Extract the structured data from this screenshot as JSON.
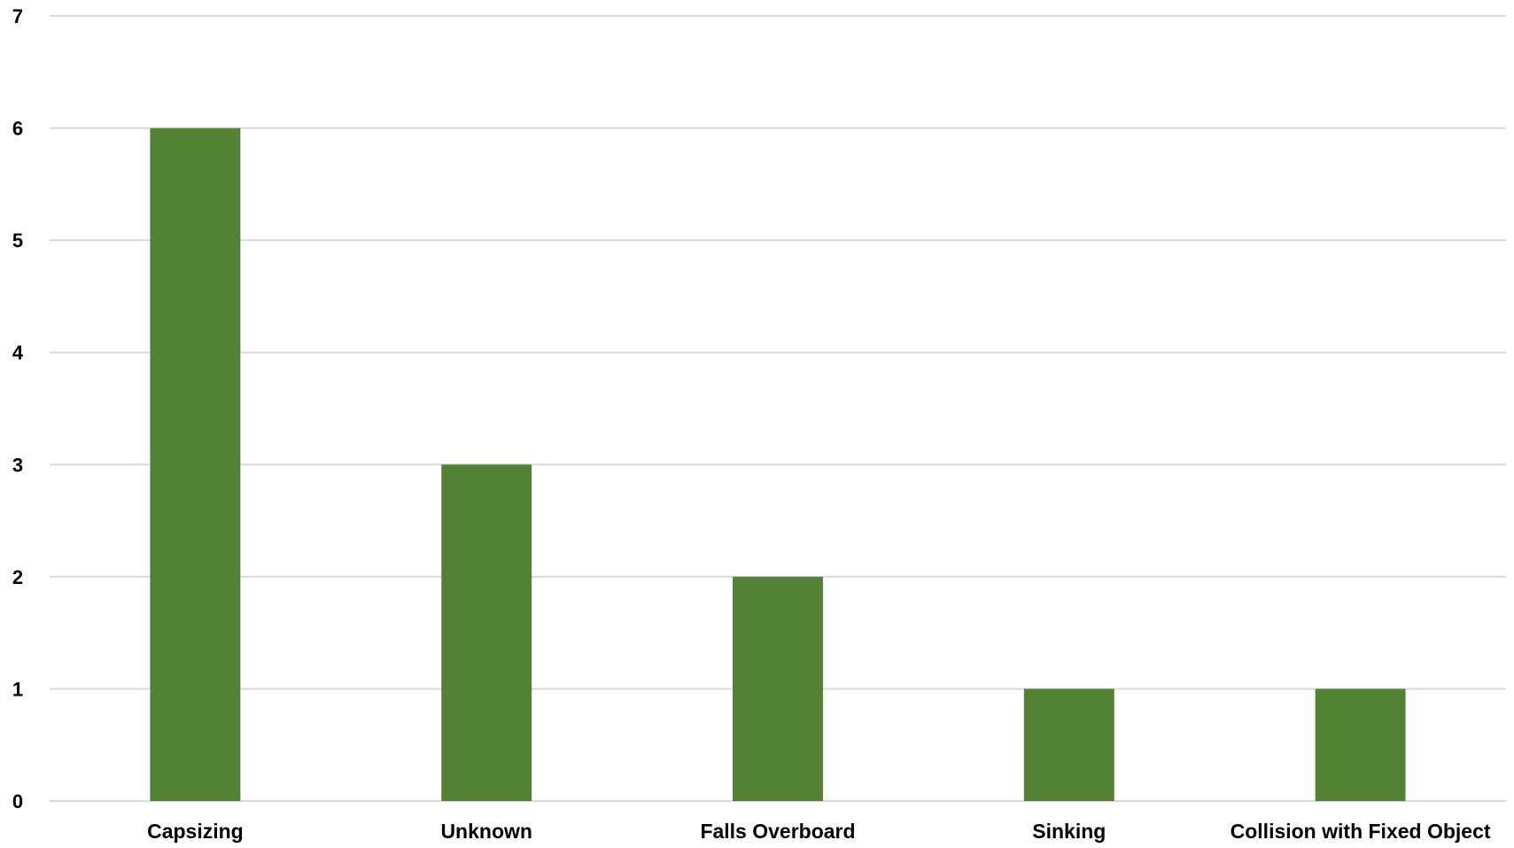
{
  "chart_data": {
    "type": "bar",
    "title": "",
    "xlabel": "",
    "ylabel": "",
    "categories": [
      "Capsizing",
      "Unknown",
      "Falls Overboard",
      "Sinking",
      "Collision with Fixed Object"
    ],
    "values": [
      6,
      3,
      2,
      1,
      1
    ],
    "ylim": [
      0,
      7
    ],
    "yticks": [
      "0",
      "1",
      "2",
      "3",
      "4",
      "5",
      "6",
      "7"
    ],
    "grid": true,
    "legend": "none",
    "colors": {
      "bar": "#548235",
      "grid": "#d9d9d9"
    }
  }
}
